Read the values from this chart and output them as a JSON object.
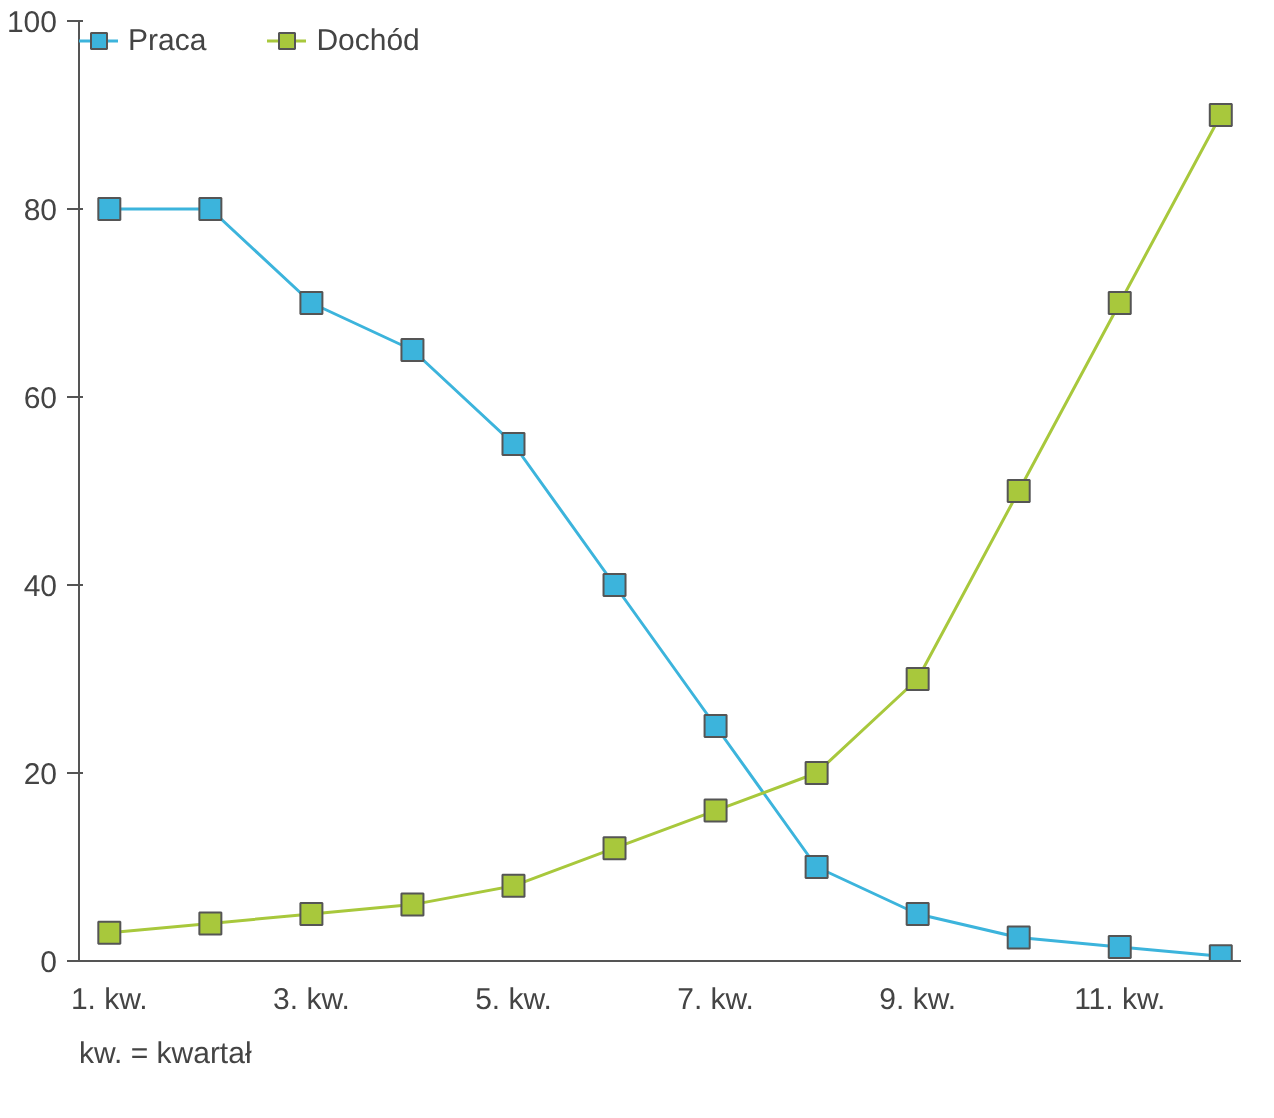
{
  "chart_data": {
    "type": "line",
    "categories": [
      "1. kw.",
      null,
      "3. kw.",
      null,
      "5. kw.",
      null,
      "7. kw.",
      null,
      "9. kw.",
      null,
      "11. kw.",
      null
    ],
    "series": [
      {
        "name": "Praca",
        "color": "#3cb4dc",
        "values": [
          80,
          80,
          70,
          65,
          55,
          40,
          25,
          10,
          5,
          2.5,
          1.5,
          0.5
        ]
      },
      {
        "name": "Dochód",
        "color": "#a8c83c",
        "values": [
          3,
          4,
          5,
          6,
          8,
          12,
          16,
          20,
          30,
          50,
          70,
          90
        ]
      }
    ],
    "ylim": [
      0,
      100
    ],
    "yticks": [
      0,
      20,
      40,
      60,
      80,
      100
    ],
    "grid": false,
    "legend": "top left",
    "marker": "square",
    "line_style": "solid",
    "annotations": [
      "kw. = kwartał"
    ]
  }
}
